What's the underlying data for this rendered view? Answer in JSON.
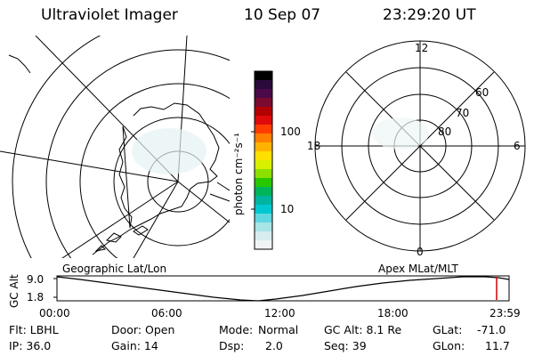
{
  "header": {
    "instrument": "Ultraviolet Imager",
    "date": "10 Sep 07",
    "time": "23:29:20 UT"
  },
  "colorbar": {
    "unit_label": "photon cm⁻²s⁻¹",
    "ticks": [
      "100",
      "10"
    ],
    "colors": [
      "#000000",
      "#2a0a3a",
      "#4a0a4a",
      "#7a0a30",
      "#b30000",
      "#e00a0a",
      "#ff3d00",
      "#ff7f00",
      "#ffb300",
      "#ffe000",
      "#d8f000",
      "#8ce000",
      "#28c800",
      "#00b45a",
      "#00b4a0",
      "#00c8d0",
      "#60d8e0",
      "#a8e4e8",
      "#d6ecee",
      "#f0f4f4"
    ]
  },
  "right_polar_plot": {
    "mlt_labels": {
      "top": "12",
      "left": "18",
      "right": "6",
      "bottom": "0"
    },
    "mlat_labels": [
      "60",
      "70",
      "80"
    ]
  },
  "altitude_panel": {
    "left_caption": "Geographic Lat/Lon",
    "right_caption": "Apex MLat/MLT",
    "axis_title": "GC Alt",
    "y_ticks": [
      "9.0",
      "1.8"
    ],
    "x_ticks": [
      "00:00",
      "06:00",
      "12:00",
      "18:00",
      "23:59"
    ],
    "cursor_color": "#d00000"
  },
  "info": {
    "row1": {
      "filter": "Flt: LBHL",
      "door": "Door: Open",
      "mode_label": "Mode:",
      "mode_value": "Normal",
      "gc_alt": "GC Alt: 8.1 Re",
      "glat_label": "GLat:",
      "glat_value": "-71.0"
    },
    "row2": {
      "ip": "IP: 36.0",
      "gain": "Gain: 14",
      "dsp_label": "Dsp:",
      "dsp_value": "2.0",
      "seq": "Seq: 39",
      "glon_label": "GLon:",
      "glon_value": "11.7"
    }
  }
}
